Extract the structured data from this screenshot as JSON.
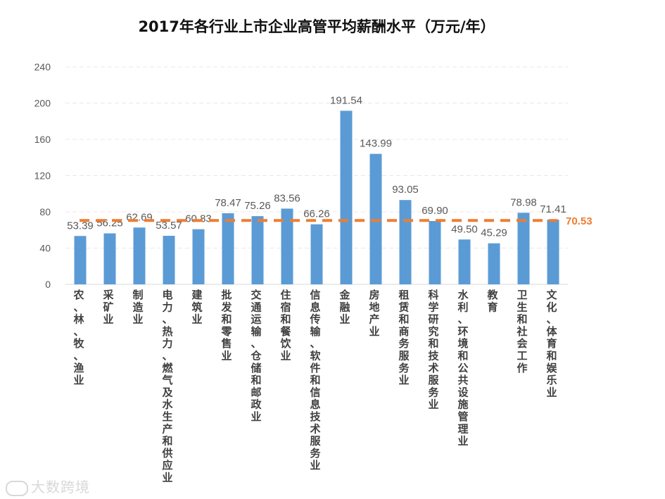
{
  "chart_data": {
    "type": "bar",
    "title": "2017年各行业上市企业高管平均薪酬水平（万元/年）",
    "categories": [
      "农、林、牧、渔业",
      "采矿业",
      "制造业",
      "电力、热力、燃气及水生产和供应业",
      "建筑业",
      "批发和零售业",
      "交通运输、仓储和邮政业",
      "住宿和餐饮业",
      "信息传输、软件和信息技术服务业",
      "金融业",
      "房地产业",
      "租赁和商务服务业",
      "科学研究和技术服务业",
      "水利、环境和公共设施管理业",
      "教育",
      "卫生和社会工作",
      "文化、体育和娱乐业"
    ],
    "values": [
      53.39,
      56.25,
      62.69,
      53.57,
      60.83,
      78.47,
      75.26,
      83.56,
      66.26,
      191.54,
      143.99,
      93.05,
      69.9,
      49.5,
      45.29,
      78.98,
      71.41
    ],
    "value_labels": [
      "53.39",
      "56.25",
      "62.69",
      "53.57",
      "60.83",
      "78.47",
      "75.26",
      "83.56",
      "66.26",
      "191.54",
      "143.99",
      "93.05",
      "69.90",
      "49.50",
      "45.29",
      "78.98",
      "71.41"
    ],
    "yticks": [
      "0",
      "40",
      "80",
      "120",
      "160",
      "200",
      "240"
    ],
    "ylim": [
      0,
      240
    ],
    "average": 70.53,
    "average_label": "70.53",
    "bar_color": "#5b9bd5",
    "average_color": "#ed7d31",
    "grid": true
  },
  "watermark": {
    "text": "大数跨境"
  }
}
